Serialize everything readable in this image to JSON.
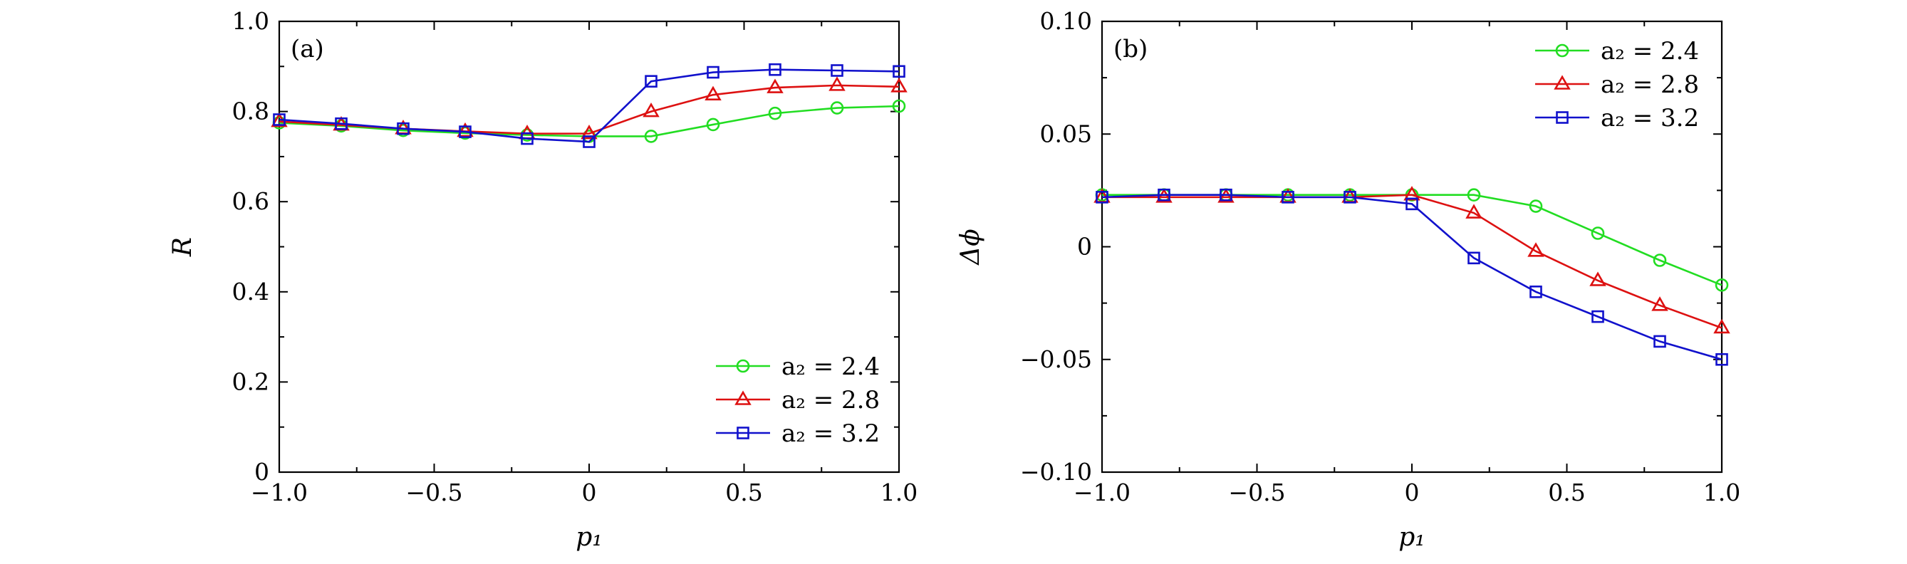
{
  "chart_data": [
    {
      "type": "line",
      "panel_label": "(a)",
      "xlabel": "p₁",
      "ylabel": "R",
      "xlim": [
        -1.0,
        1.0
      ],
      "ylim": [
        0,
        1.0
      ],
      "xticks": [
        -1.0,
        -0.5,
        0,
        0.5,
        1.0
      ],
      "xtick_labels": [
        "−1.0",
        "−0.5",
        "0",
        "0.5",
        "1.0"
      ],
      "yticks": [
        0,
        0.2,
        0.4,
        0.6,
        0.8,
        1.0
      ],
      "ytick_labels": [
        "0",
        "0.2",
        "0.4",
        "0.6",
        "0.8",
        "1.0"
      ],
      "grid": false,
      "legend_position": "bottom-right",
      "x": [
        -1.0,
        -0.8,
        -0.6,
        -0.4,
        -0.2,
        0,
        0.2,
        0.4,
        0.6,
        0.8,
        1.0
      ],
      "series": [
        {
          "name": "a₂ = 2.4",
          "color": "#22dd22",
          "marker": "circle",
          "values": [
            0.775,
            0.768,
            0.758,
            0.752,
            0.748,
            0.745,
            0.745,
            0.771,
            0.796,
            0.808,
            0.812
          ]
        },
        {
          "name": "a₂ = 2.8",
          "color": "#dd1111",
          "marker": "triangle",
          "values": [
            0.778,
            0.77,
            0.762,
            0.756,
            0.751,
            0.751,
            0.8,
            0.837,
            0.853,
            0.858,
            0.855
          ]
        },
        {
          "name": "a₂ = 3.2",
          "color": "#1111cc",
          "marker": "square",
          "values": [
            0.782,
            0.773,
            0.762,
            0.755,
            0.74,
            0.733,
            0.867,
            0.887,
            0.893,
            0.891,
            0.889
          ]
        }
      ]
    },
    {
      "type": "line",
      "panel_label": "(b)",
      "xlabel": "p₁",
      "ylabel": "Δϕ",
      "xlim": [
        -1.0,
        1.0
      ],
      "ylim": [
        -0.1,
        0.1
      ],
      "xticks": [
        -1.0,
        -0.5,
        0,
        0.5,
        1.0
      ],
      "xtick_labels": [
        "−1.0",
        "−0.5",
        "0",
        "0.5",
        "1.0"
      ],
      "yticks": [
        -0.1,
        -0.05,
        0,
        0.05,
        0.1
      ],
      "ytick_labels": [
        "−0.10",
        "−0.05",
        "0",
        "0.05",
        "0.10"
      ],
      "grid": false,
      "legend_position": "top-right",
      "x": [
        -1.0,
        -0.8,
        -0.6,
        -0.4,
        -0.2,
        0,
        0.2,
        0.4,
        0.6,
        0.8,
        1.0
      ],
      "series": [
        {
          "name": "a₂ = 2.4",
          "color": "#22dd22",
          "marker": "circle",
          "values": [
            0.023,
            0.023,
            0.023,
            0.023,
            0.023,
            0.023,
            0.023,
            0.018,
            0.006,
            -0.006,
            -0.017
          ]
        },
        {
          "name": "a₂ = 2.8",
          "color": "#dd1111",
          "marker": "triangle",
          "values": [
            0.022,
            0.022,
            0.022,
            0.022,
            0.022,
            0.023,
            0.015,
            -0.002,
            -0.015,
            -0.026,
            -0.036
          ]
        },
        {
          "name": "a₂ = 3.2",
          "color": "#1111cc",
          "marker": "square",
          "values": [
            0.022,
            0.023,
            0.023,
            0.022,
            0.022,
            0.019,
            -0.005,
            -0.02,
            -0.031,
            -0.042,
            -0.05
          ]
        }
      ]
    }
  ]
}
